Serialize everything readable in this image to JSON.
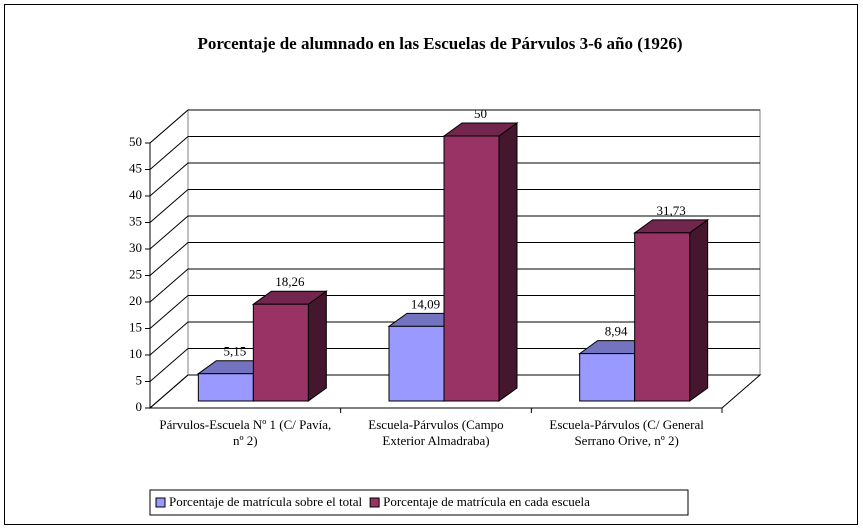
{
  "chart_data": {
    "type": "bar3d",
    "title": "Porcentaje de alumnado en las Escuelas de Párvulos 3-6 año (1926)",
    "categories": [
      "Párvulos-Escuela Nº 1 (C/ Pavía, nº 2)",
      "Escuela-Párvulos (Campo Exterior Almadraba)",
      "Escuela-Párvulos (C/ General Serrano Orive, nº 2)"
    ],
    "series": [
      {
        "name": "Porcentaje de matrícula sobre el total",
        "color": "#9999ff",
        "values": [
          5.15,
          14.09,
          8.94
        ],
        "value_labels": [
          "5,15",
          "14,09",
          "8,94"
        ]
      },
      {
        "name": "Porcentaje de matrícula en cada escuela",
        "color": "#993366",
        "values": [
          18.26,
          50,
          31.73
        ],
        "value_labels": [
          "18,26",
          "50",
          "31,73"
        ]
      }
    ],
    "ylim": [
      0,
      50
    ],
    "yticks": [
      0,
      5,
      10,
      15,
      20,
      25,
      30,
      35,
      40,
      45,
      50
    ],
    "grid": true,
    "legend": "bottom"
  }
}
